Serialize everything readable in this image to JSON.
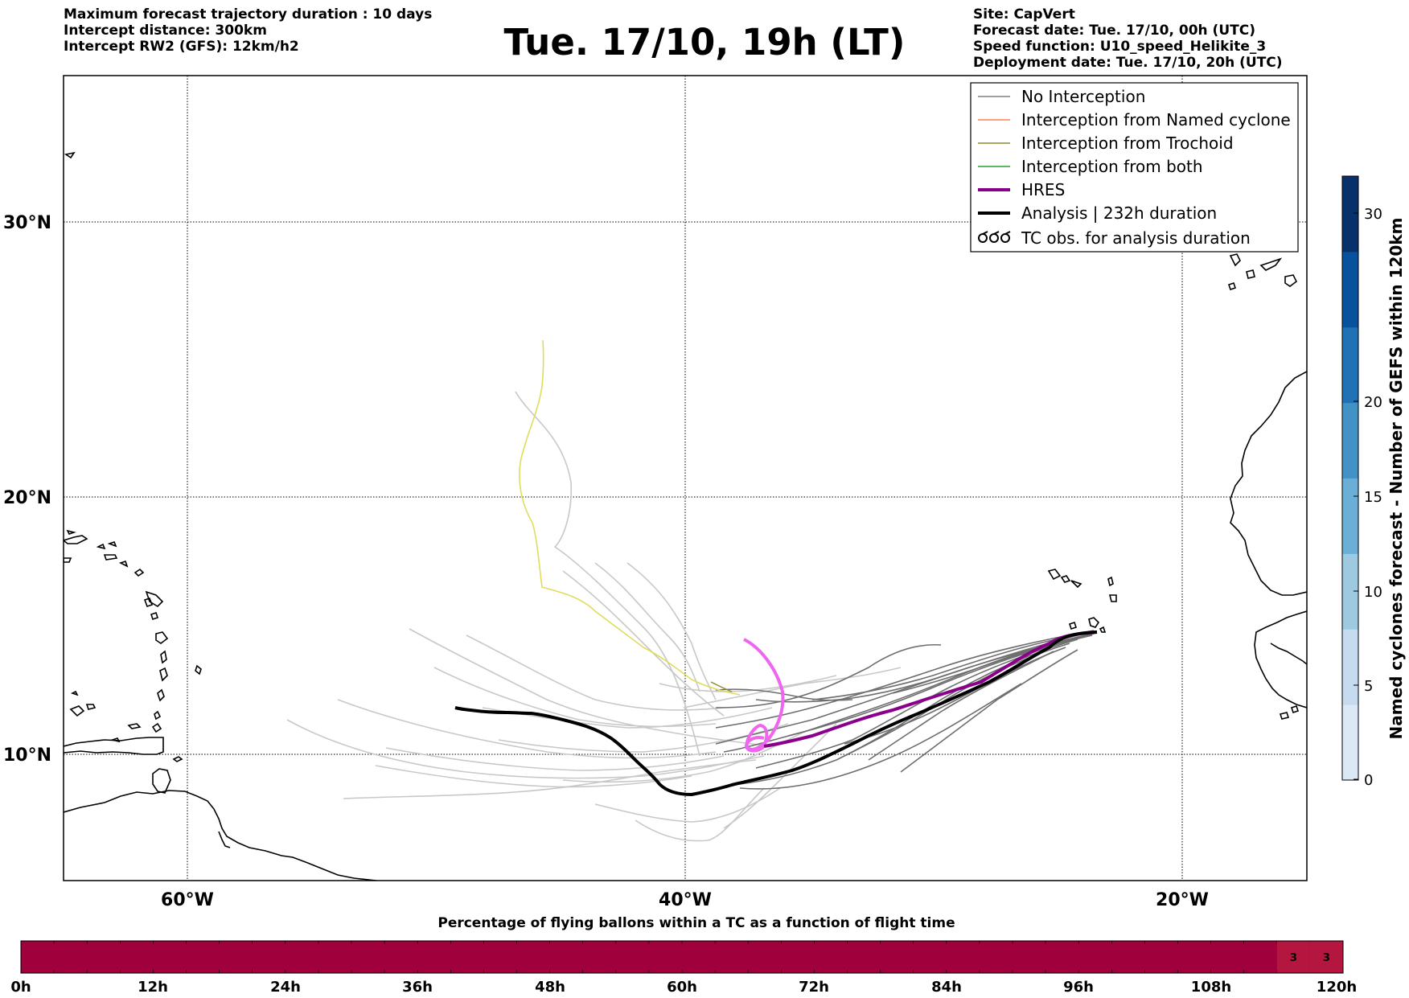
{
  "header": {
    "left_lines": [
      "Maximum forecast trajectory duration : 10 days",
      "Intercept distance: 300km",
      "Intercept RW2 (GFS):  12km/h2"
    ],
    "title": "Tue. 17/10, 19h (LT)",
    "right_lines": [
      "Site: CapVert",
      "Forecast date: Tue. 17/10, 00h (UTC)",
      "Speed function: U10_speed_Helikite_3",
      "Deployment date: Tue. 17/10, 20h (UTC)"
    ]
  },
  "map": {
    "lon_ticks": [
      "60°W",
      "40°W",
      "20°W"
    ],
    "lat_ticks": [
      "30°N",
      "20°N",
      "10°N"
    ],
    "lon_range": [
      -65,
      -15
    ],
    "lat_range": [
      5.5,
      35
    ]
  },
  "legend": {
    "items": [
      {
        "label": "No Interception",
        "color": "#808080",
        "style": "thin"
      },
      {
        "label": "Interception from Named cyclone",
        "color": "#ff7f50",
        "style": "thin"
      },
      {
        "label": "Interception from Trochoid",
        "color": "#8b8b2a",
        "style": "thin"
      },
      {
        "label": "Interception from both",
        "color": "#2ca02c",
        "style": "thin"
      },
      {
        "label": "HRES",
        "color": "#8b008b",
        "style": "thick"
      },
      {
        "label": "Analysis | 232h duration",
        "color": "#000000",
        "style": "thick"
      },
      {
        "label": "TC obs. for analysis duration",
        "color": "#000000",
        "style": "symbol"
      }
    ]
  },
  "colorbar": {
    "label": "Named cyclones forecast - Number of GEFS within 120km",
    "ticks": [
      "0",
      "5",
      "10",
      "15",
      "20",
      "30"
    ],
    "colors": [
      "#dbe8f6",
      "#c6dbef",
      "#9ecae1",
      "#6baed6",
      "#4292c6",
      "#2171b5",
      "#08519c",
      "#08306b"
    ]
  },
  "timebar": {
    "title": "Percentage of flying ballons within a TC as a function of flight time",
    "ticks": [
      "0h",
      "12h",
      "24h",
      "36h",
      "48h",
      "60h",
      "72h",
      "84h",
      "96h",
      "108h",
      "120h"
    ],
    "fill_color": "#a0003c",
    "highlight_color": "#b4163f",
    "cells": [
      {
        "hour_start": 114,
        "hour_end": 117,
        "value": "3"
      },
      {
        "hour_start": 117,
        "hour_end": 120,
        "value": "3"
      }
    ]
  }
}
